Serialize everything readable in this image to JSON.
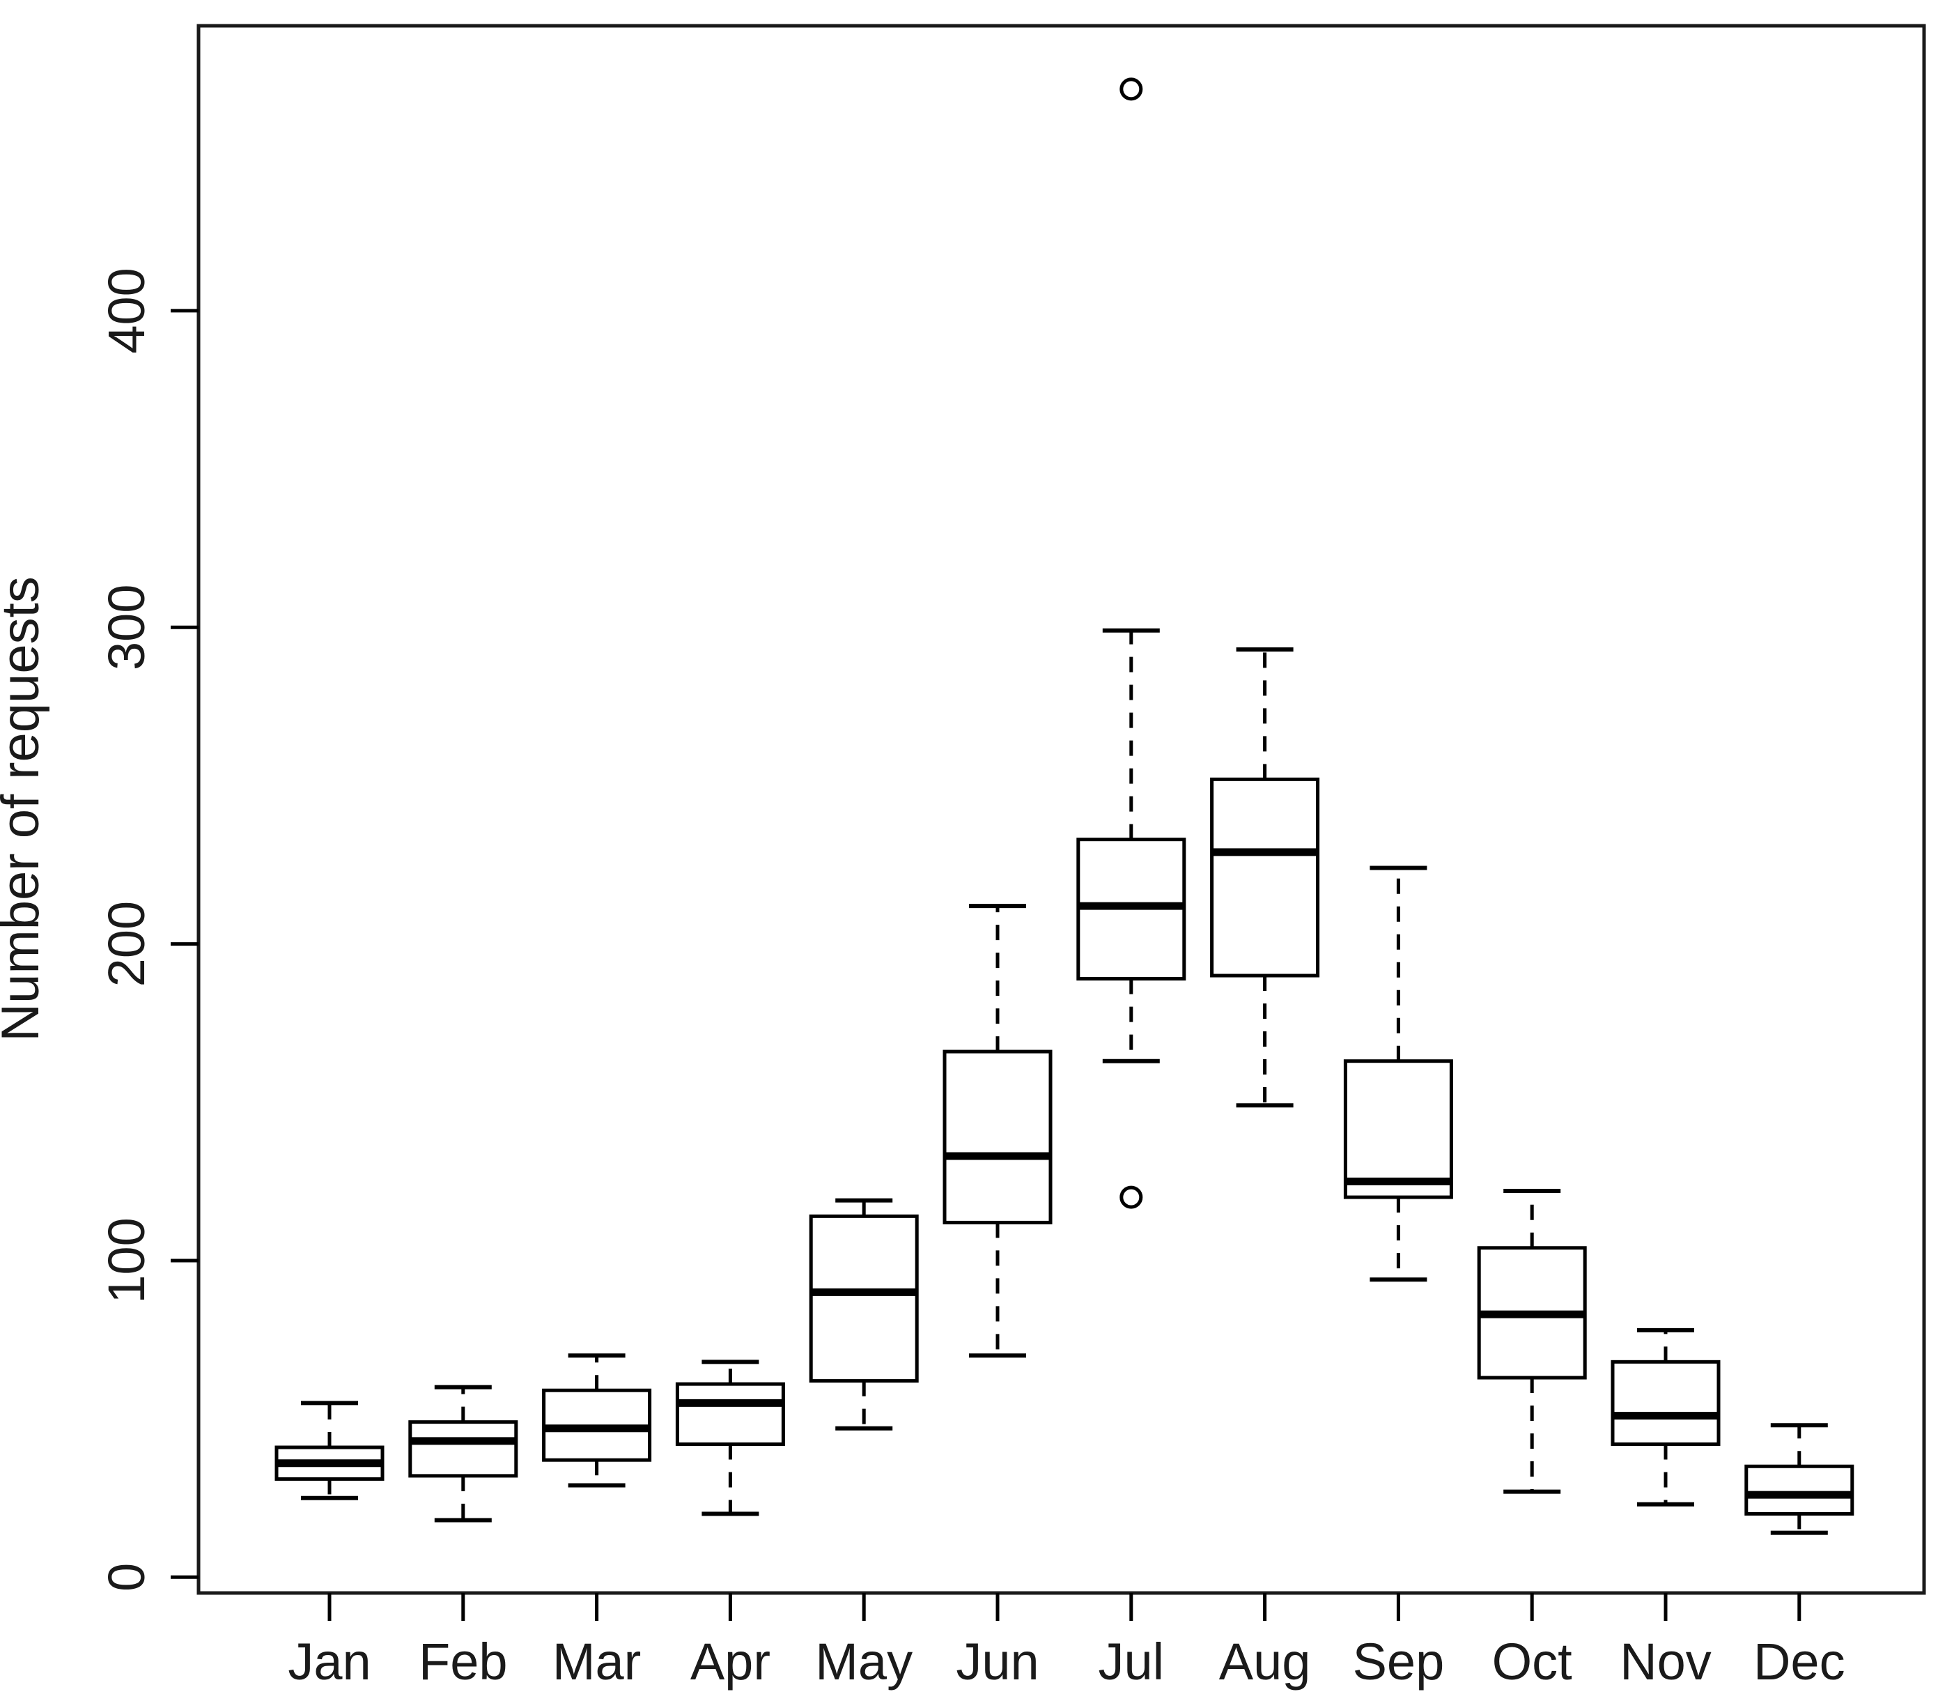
{
  "chart_data": {
    "type": "boxplot",
    "title": "",
    "xlabel": "",
    "ylabel": "Number of requests",
    "categories": [
      "Jan",
      "Feb",
      "Mar",
      "Apr",
      "May",
      "Jun",
      "Jul",
      "Aug",
      "Sep",
      "Oct",
      "Nov",
      "Dec"
    ],
    "series": [
      {
        "name": "Jan",
        "low": 25,
        "q1": 31,
        "median": 36,
        "q3": 41,
        "high": 55,
        "outliers": []
      },
      {
        "name": "Feb",
        "low": 18,
        "q1": 32,
        "median": 43,
        "q3": 49,
        "high": 60,
        "outliers": []
      },
      {
        "name": "Mar",
        "low": 29,
        "q1": 37,
        "median": 47,
        "q3": 59,
        "high": 70,
        "outliers": []
      },
      {
        "name": "Apr",
        "low": 20,
        "q1": 42,
        "median": 55,
        "q3": 61,
        "high": 68,
        "outliers": []
      },
      {
        "name": "May",
        "low": 47,
        "q1": 62,
        "median": 90,
        "q3": 114,
        "high": 119,
        "outliers": []
      },
      {
        "name": "Jun",
        "low": 70,
        "q1": 112,
        "median": 133,
        "q3": 166,
        "high": 212,
        "outliers": []
      },
      {
        "name": "Jul",
        "low": 163,
        "q1": 189,
        "median": 212,
        "q3": 233,
        "high": 299,
        "outliers": [
          470,
          120
        ]
      },
      {
        "name": "Aug",
        "low": 149,
        "q1": 190,
        "median": 229,
        "q3": 252,
        "high": 293,
        "outliers": []
      },
      {
        "name": "Sep",
        "low": 94,
        "q1": 120,
        "median": 125,
        "q3": 163,
        "high": 224,
        "outliers": []
      },
      {
        "name": "Oct",
        "low": 27,
        "q1": 63,
        "median": 83,
        "q3": 104,
        "high": 122,
        "outliers": []
      },
      {
        "name": "Nov",
        "low": 23,
        "q1": 42,
        "median": 51,
        "q3": 68,
        "high": 78,
        "outliers": []
      },
      {
        "name": "Dec",
        "low": 14,
        "q1": 20,
        "median": 26,
        "q3": 35,
        "high": 48,
        "outliers": []
      }
    ],
    "y_ticks": [
      0,
      100,
      200,
      300,
      400
    ],
    "ylim": [
      -5,
      490
    ],
    "grid": false,
    "legend": null,
    "line_color": "#000000",
    "box_fill": "#ffffff"
  }
}
